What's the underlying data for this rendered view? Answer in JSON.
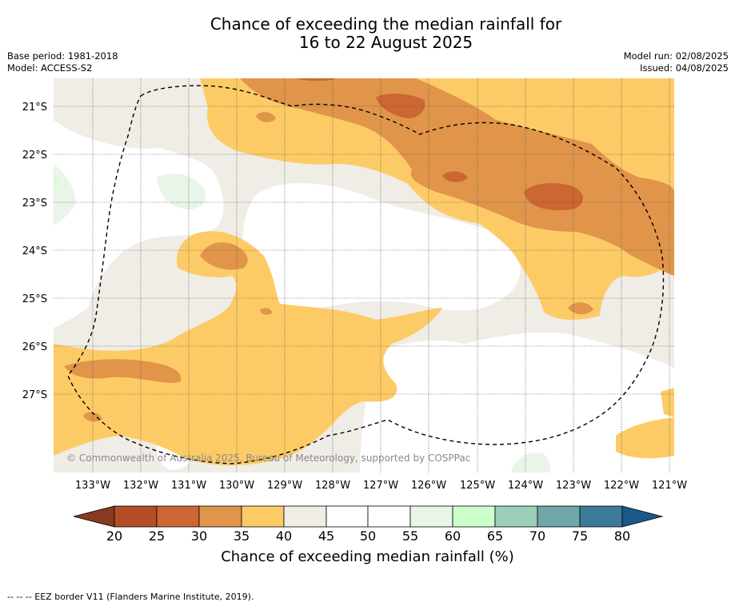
{
  "title_line1": "Chance of exceeding the median rainfall for",
  "title_line2": "16 to 22 August 2025",
  "meta": {
    "base_period": "Base period: 1981-2018",
    "model": "Model: ACCESS-S2",
    "model_run": "Model run: 02/08/2025",
    "issued": "Issued: 04/08/2025"
  },
  "copyright": "© Commonwealth of Australia 2025, Bureau of Meteorology, supported by COSPPac",
  "footer": "--  --  -- EEZ border V11 (Flanders Marine Institute, 2019).",
  "colors": {
    "c20": "#b34e26",
    "c25": "#cc6633",
    "c30": "#e0954a",
    "c35": "#fdcb66",
    "c40": "#f0ece6",
    "c45": "#ffffff",
    "c55": "#e9f5e9",
    "c60": "#ccffcc",
    "c65": "#9ccfb8",
    "c70": "#6fa6a8",
    "c75": "#3d7a99",
    "c80": "#1a5a8a",
    "under": "#8a3a20"
  },
  "map": {
    "lat_labels": [
      "21°S",
      "22°S",
      "23°S",
      "24°S",
      "25°S",
      "26°S",
      "27°S"
    ],
    "lon_labels": [
      "133°W",
      "132°W",
      "131°W",
      "130°W",
      "129°W",
      "128°W",
      "127°W",
      "126°W",
      "125°W",
      "124°W",
      "123°W",
      "122°W",
      "121°W"
    ]
  },
  "colorbar": {
    "ticks": [
      "20",
      "25",
      "30",
      "35",
      "40",
      "45",
      "50",
      "55",
      "60",
      "65",
      "70",
      "75",
      "80"
    ],
    "label": "Chance of exceeding median rainfall (%)"
  }
}
